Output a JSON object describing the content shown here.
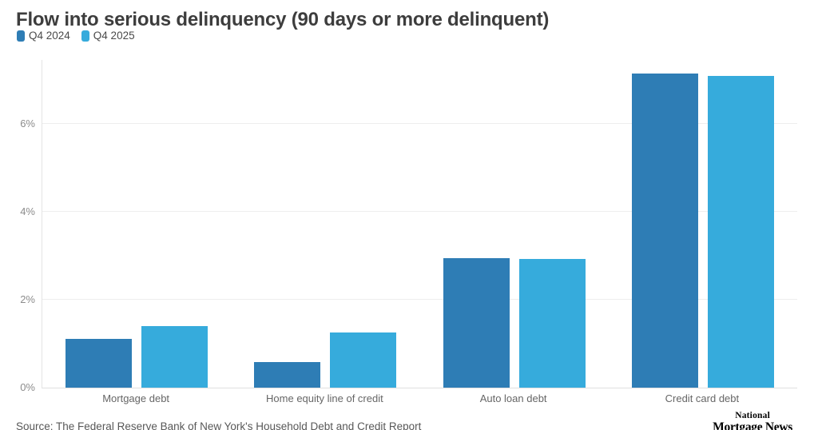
{
  "header": {
    "title": "Flow into serious delinquency (90 days or more delinquent)"
  },
  "chart_data": {
    "type": "bar",
    "title": "Flow into serious delinquency (90 days or more delinquent)",
    "categories": [
      "Mortgage debt",
      "Home equity line of credit",
      "Auto loan debt",
      "Credit card debt"
    ],
    "series": [
      {
        "name": "Q4 2024",
        "color": "#2e7db5",
        "values": [
          1.1,
          0.58,
          2.95,
          7.14
        ]
      },
      {
        "name": "Q4 2025",
        "color": "#36abdc",
        "values": [
          1.4,
          1.25,
          2.93,
          7.09
        ]
      }
    ],
    "xlabel": "",
    "ylabel": "",
    "ylim": [
      0,
      7.45
    ],
    "y_ticks": [
      {
        "value": 0,
        "label": "0%"
      },
      {
        "value": 2,
        "label": "2%"
      },
      {
        "value": 4,
        "label": "4%"
      },
      {
        "value": 6,
        "label": "6%"
      }
    ],
    "grid": true,
    "legend_position": "top-left"
  },
  "footer": {
    "source": "Source: The Federal Reserve Bank of New York's Household Debt and Credit Report",
    "logo_line1": "National",
    "logo_line2": "Mortgage News"
  }
}
